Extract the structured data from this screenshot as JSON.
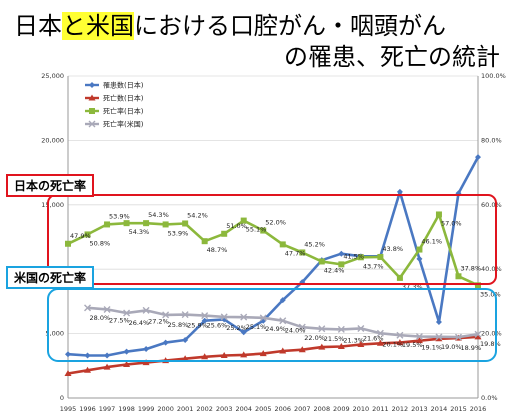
{
  "title": {
    "line1_pre": "日本",
    "line1_highlight1": "と米国",
    "line1_post": "における口腔がん・咽頭がん",
    "line2": "の罹患、死亡の統計"
  },
  "callouts": {
    "japan": "日本の死亡率",
    "us": "米国の死亡率"
  },
  "chart_data": {
    "type": "line",
    "x": [
      "1995",
      "1996",
      "1997",
      "1998",
      "1999",
      "2000",
      "2001",
      "2002",
      "2003",
      "2004",
      "2005",
      "2006",
      "2007",
      "2008",
      "2009",
      "2010",
      "2011",
      "2012",
      "2013",
      "2014",
      "2015",
      "2016"
    ],
    "y_left": {
      "ticks": [
        "0",
        "5,000",
        "10,000",
        "15,000",
        "20,000",
        "25,000"
      ],
      "range": [
        0,
        25000
      ]
    },
    "y_right": {
      "ticks": [
        "0.0%",
        "20.0%",
        "40.0%",
        "60.0%",
        "80.0%",
        "100.0%"
      ],
      "range": [
        0,
        100
      ]
    },
    "series": [
      {
        "name": "罹患数(日本)",
        "axis": "left",
        "color": "#4a78c2",
        "marker": "diamond",
        "values": [
          3400,
          3300,
          3300,
          3600,
          3800,
          4300,
          4500,
          6000,
          6100,
          5100,
          6000,
          7600,
          9000,
          10700,
          11200,
          11000,
          11000,
          16000,
          10800,
          5900,
          15900,
          18700
        ]
      },
      {
        "name": "死亡数(日本)",
        "axis": "left",
        "color": "#c0392b",
        "marker": "triangle",
        "values": [
          1900,
          2150,
          2400,
          2600,
          2750,
          2900,
          3050,
          3200,
          3300,
          3350,
          3450,
          3650,
          3750,
          3950,
          4000,
          4150,
          4250,
          4300,
          4450,
          4600,
          4650,
          4750
        ]
      },
      {
        "name": "死亡率(日本)",
        "axis": "right",
        "color": "#8cb83c",
        "marker": "square",
        "values": [
          47.9,
          50.8,
          53.9,
          54.3,
          54.3,
          53.9,
          54.2,
          48.7,
          51.0,
          55.1,
          52.0,
          47.7,
          45.2,
          42.4,
          41.5,
          43.7,
          43.8,
          37.3,
          46.1,
          57.0,
          37.8,
          35.0
        ],
        "labels": [
          "47.9%",
          "50.8%",
          "53.9%",
          "54.3%",
          "54.3%",
          "53.9%",
          "54.2%",
          "48.7%",
          "51.0%",
          "55.1%",
          "52.0%",
          "47.7%",
          "45.2%",
          "42.4%",
          "41.5%",
          "43.7%",
          "43.8%",
          "37.3%",
          "46.1%",
          "57.0%",
          "37.8%",
          "35.0%"
        ]
      },
      {
        "name": "死亡率(米国)",
        "axis": "right",
        "color": "#a9a9b8",
        "marker": "x",
        "values": [
          null,
          28.0,
          27.5,
          26.4,
          27.2,
          25.8,
          25.9,
          25.6,
          25.2,
          25.1,
          24.9,
          24.0,
          22.0,
          21.5,
          21.3,
          21.6,
          20.1,
          19.5,
          19.1,
          19.0,
          18.9,
          19.8
        ],
        "labels": [
          "",
          "28.0%",
          "27.5%",
          "26.4%",
          "27.2%",
          "25.8%",
          "25.9%",
          "25.6%",
          "25.2%",
          "25.1%",
          "24.9%",
          "24.0%",
          "22.0%",
          "21.5%",
          "21.3%",
          "21.6%",
          "20.1%",
          "19.5%",
          "19.1%",
          "19.0%",
          "18.9%",
          "19.8%"
        ]
      }
    ],
    "grid": true,
    "legend_position": "top-left"
  }
}
